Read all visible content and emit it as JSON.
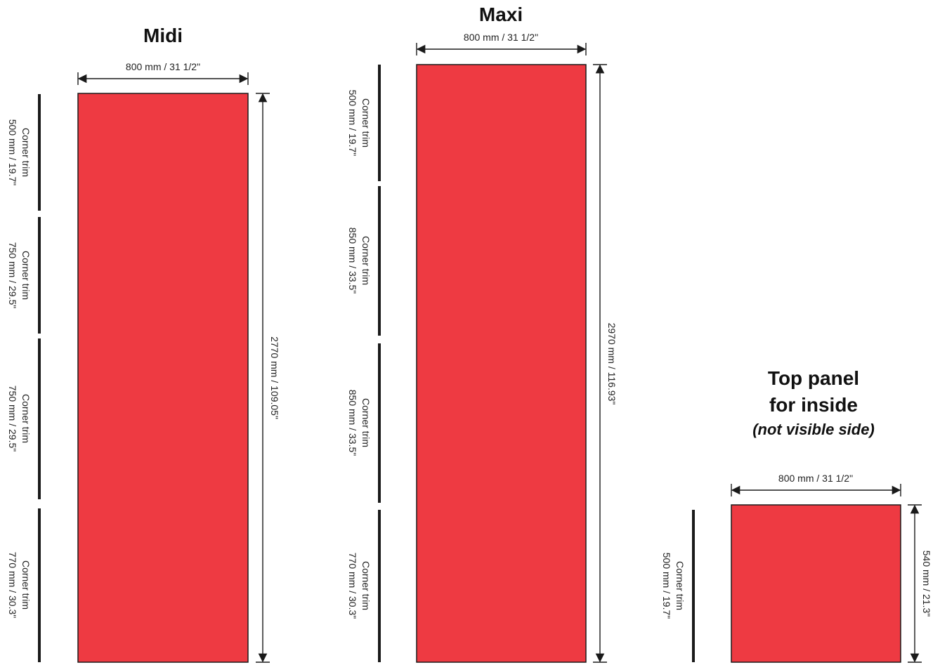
{
  "midi": {
    "title": "Midi",
    "width_label": "800 mm / 31 1/2\"",
    "height_label": "2770 mm / 109.05\"",
    "panel_color": "#ee3a42",
    "trims": [
      {
        "label": "Corner trim",
        "size": "500 mm / 19.7\""
      },
      {
        "label": "Corner trim",
        "size": "750 mm / 29.5\""
      },
      {
        "label": "Corner trim",
        "size": "750 mm / 29.5\""
      },
      {
        "label": "Corner trim",
        "size": "770 mm / 30.3\""
      }
    ]
  },
  "maxi": {
    "title": "Maxi",
    "width_label": "800 mm / 31 1/2\"",
    "height_label": "2970 mm / 116.93\"",
    "panel_color": "#ee3a42",
    "trims": [
      {
        "label": "Corner trim",
        "size": "500 mm / 19.7\""
      },
      {
        "label": "Corner trim",
        "size": "850 mm / 33.5\""
      },
      {
        "label": "Corner trim",
        "size": "850 mm / 33.5\""
      },
      {
        "label": "Corner trim",
        "size": "770 mm / 30.3\""
      }
    ]
  },
  "top_panel": {
    "title_line1": "Top panel",
    "title_line2": "for inside",
    "subtitle": "(not visible side)",
    "width_label": "800 mm / 31 1/2\"",
    "height_label": "540 mm / 21.3\"",
    "panel_color": "#ee3a42",
    "trims": [
      {
        "label": "Corner trim",
        "size": "500 mm / 19.7\""
      }
    ]
  }
}
